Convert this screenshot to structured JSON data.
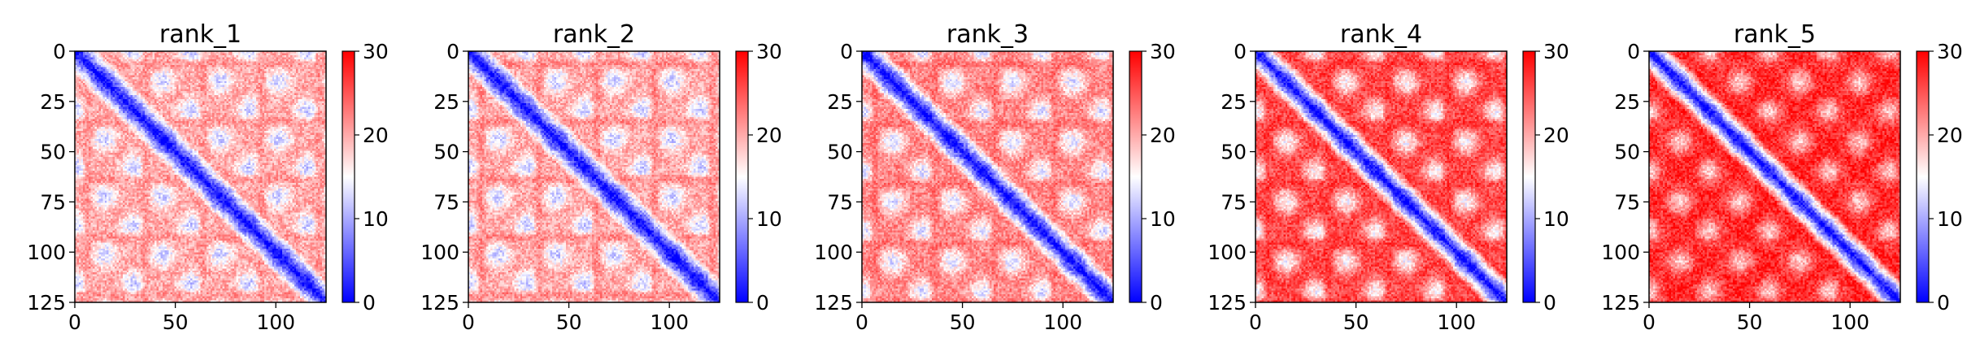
{
  "figure": {
    "colormap": {
      "name": "bwr",
      "low": "#0000ff",
      "mid": "#ffffff",
      "high": "#ff0000"
    },
    "panel_count": 5
  },
  "chart_data": [
    {
      "type": "heatmap",
      "title": "rank_1",
      "size": 126,
      "xlim": [
        0,
        125
      ],
      "ylim": [
        125,
        0
      ],
      "xticks": [
        0,
        50,
        100
      ],
      "yticks": [
        0,
        25,
        50,
        75,
        100,
        125
      ],
      "colorbar": {
        "min": 0,
        "max": 30,
        "ticks": [
          0,
          10,
          20,
          30
        ]
      },
      "pattern": {
        "diag": 0,
        "off": 20,
        "period": 29,
        "stripe": 22,
        "blobs": 12,
        "noise": 3,
        "seed": 11
      },
      "grid": false
    },
    {
      "type": "heatmap",
      "title": "rank_2",
      "size": 126,
      "xlim": [
        0,
        125
      ],
      "ylim": [
        125,
        0
      ],
      "xticks": [
        0,
        50,
        100
      ],
      "yticks": [
        0,
        25,
        50,
        75,
        100,
        125
      ],
      "colorbar": {
        "min": 0,
        "max": 30,
        "ticks": [
          0,
          10,
          20,
          30
        ]
      },
      "pattern": {
        "diag": 0,
        "off": 20,
        "period": 29,
        "stripe": 23,
        "blobs": 12,
        "noise": 3,
        "seed": 23
      },
      "grid": false
    },
    {
      "type": "heatmap",
      "title": "rank_3",
      "size": 126,
      "xlim": [
        0,
        125
      ],
      "ylim": [
        125,
        0
      ],
      "xticks": [
        0,
        50,
        100
      ],
      "yticks": [
        0,
        25,
        50,
        75,
        100,
        125
      ],
      "colorbar": {
        "min": 0,
        "max": 30,
        "ticks": [
          0,
          10,
          20,
          30
        ]
      },
      "pattern": {
        "diag": 0,
        "off": 22,
        "period": 30,
        "stripe": 24,
        "blobs": 13,
        "noise": 3,
        "seed": 37
      },
      "grid": false
    },
    {
      "type": "heatmap",
      "title": "rank_4",
      "size": 126,
      "xlim": [
        0,
        125
      ],
      "ylim": [
        125,
        0
      ],
      "xticks": [
        0,
        50,
        100
      ],
      "yticks": [
        0,
        25,
        50,
        75,
        100,
        125
      ],
      "colorbar": {
        "min": 0,
        "max": 30,
        "ticks": [
          0,
          10,
          20,
          30
        ]
      },
      "pattern": {
        "diag": 0,
        "off": 26,
        "period": 30,
        "stripe": 27,
        "blobs": 15,
        "noise": 3,
        "seed": 41
      },
      "grid": false
    },
    {
      "type": "heatmap",
      "title": "rank_5",
      "size": 126,
      "xlim": [
        0,
        125
      ],
      "ylim": [
        125,
        0
      ],
      "xticks": [
        0,
        50,
        100
      ],
      "yticks": [
        0,
        25,
        50,
        75,
        100,
        125
      ],
      "colorbar": {
        "min": 0,
        "max": 30,
        "ticks": [
          0,
          10,
          20,
          30
        ]
      },
      "pattern": {
        "diag": 0,
        "off": 28,
        "period": 30,
        "stripe": 26,
        "blobs": 18,
        "noise": 3,
        "seed": 59
      },
      "grid": false
    }
  ]
}
